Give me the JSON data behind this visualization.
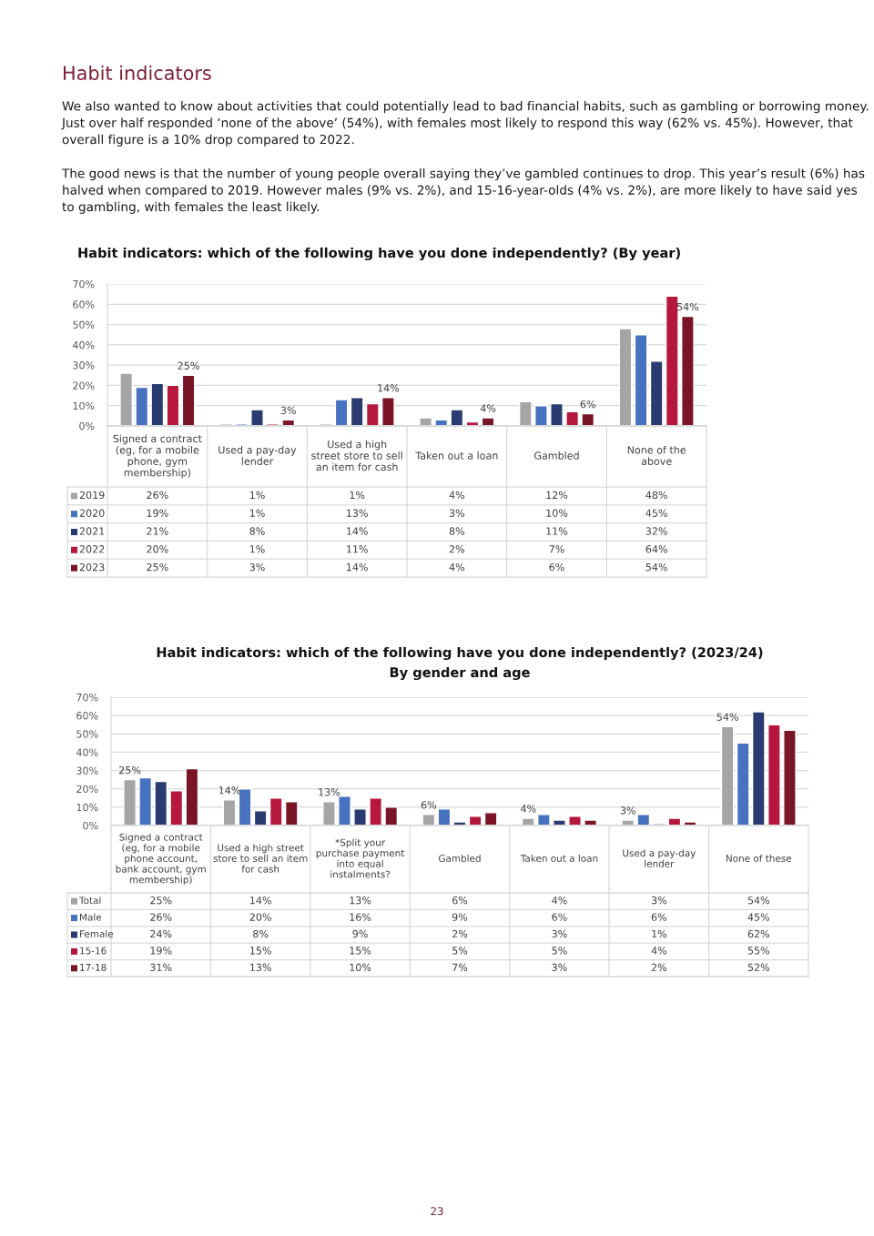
{
  "chart_data": [
    {
      "type": "other",
      "title": "Habit indicators",
      "annotations": [
        "We also wanted to know about activities that could potentially lead to bad financial habits, such as gambling or borrowing money. Just over half responded ‘none of the above’ (54%), with females most likely to respond this way (62% vs. 45%). However, that overall figure is a 10% drop compared to 2022.",
        "The good news is that the number of young people overall saying they’ve gambled continues to drop. This year’s result (6%) has halved when compared to 2019. However males (9% vs. 2%), and 15-16-year-olds (4% vs. 2%), are more likely to have said yes to gambling, with females the least likely."
      ]
    },
    {
      "type": "bar",
      "title": "Habit indicators: which of the following have you done independently? (By year)",
      "categories": [
        "Signed a contract (eg, for a mobile phone, gym membership)",
        "Used a pay-day lender",
        "Used a high street store to sell an item for cash",
        "Taken out a loan",
        "Gambled",
        "None of the above"
      ],
      "series": [
        {
          "name": "2019",
          "color": "#a5a5a5",
          "values": [
            26,
            1,
            1,
            4,
            12,
            48
          ],
          "value_labels": [
            "26%",
            "1%",
            "1%",
            "4%",
            "12%",
            "48%"
          ]
        },
        {
          "name": "2020",
          "color": "#4672bf",
          "values": [
            19,
            1,
            13,
            3,
            10,
            45
          ],
          "value_labels": [
            "19%",
            "1%",
            "13%",
            "3%",
            "10%",
            "45%"
          ]
        },
        {
          "name": "2021",
          "color": "#293b70",
          "values": [
            21,
            8,
            14,
            8,
            11,
            32
          ],
          "value_labels": [
            "21%",
            "8%",
            "14%",
            "8%",
            "11%",
            "32%"
          ]
        },
        {
          "name": "2022",
          "color": "#b5173d",
          "values": [
            20,
            1,
            11,
            2,
            7,
            64
          ],
          "value_labels": [
            "20%",
            "1%",
            "11%",
            "2%",
            "7%",
            "64%"
          ]
        },
        {
          "name": "2023",
          "color": "#7a1527",
          "values": [
            25,
            3,
            14,
            4,
            6,
            54
          ],
          "value_labels": [
            "25%",
            "3%",
            "14%",
            "4%",
            "6%",
            "54%"
          ]
        }
      ],
      "annotations": [
        "25%",
        "3%",
        "14%",
        "4%",
        "6%",
        "54%"
      ],
      "ylim": [
        0,
        70
      ],
      "yticks": [
        {
          "value": 0,
          "label": "0%"
        },
        {
          "value": 10,
          "label": "10%"
        },
        {
          "value": 20,
          "label": "20%"
        },
        {
          "value": 30,
          "label": "30%"
        },
        {
          "value": 40,
          "label": "40%"
        },
        {
          "value": 50,
          "label": "50%"
        },
        {
          "value": 60,
          "label": "60%"
        },
        {
          "value": 70,
          "label": "70%"
        }
      ],
      "grid": "y",
      "legend": "bottom"
    },
    {
      "type": "bar",
      "title": "Habit indicators: which of the following have you done independently? (2023/24)",
      "subtitle": "By gender and age",
      "categories": [
        "Signed a contract (eg, for a mobile phone account, bank account, gym membership)",
        "Used a high street store to sell an item for cash",
        "*Split your purchase payment into equal instalments?",
        "Gambled",
        "Taken out a loan",
        "Used a pay-day lender",
        "None of these"
      ],
      "series": [
        {
          "name": "Total",
          "color": "#a5a5a5",
          "values": [
            25,
            14,
            13,
            6,
            4,
            3,
            54
          ],
          "value_labels": [
            "25%",
            "14%",
            "13%",
            "6%",
            "4%",
            "3%",
            "54%"
          ]
        },
        {
          "name": "Male",
          "color": "#4672bf",
          "values": [
            26,
            20,
            16,
            9,
            6,
            6,
            45
          ],
          "value_labels": [
            "26%",
            "20%",
            "16%",
            "9%",
            "6%",
            "6%",
            "45%"
          ]
        },
        {
          "name": "Female",
          "color": "#293b70",
          "values": [
            24,
            8,
            9,
            2,
            3,
            1,
            62
          ],
          "value_labels": [
            "24%",
            "8%",
            "9%",
            "2%",
            "3%",
            "1%",
            "62%"
          ]
        },
        {
          "name": "15-16",
          "color": "#b5173d",
          "values": [
            19,
            15,
            15,
            5,
            5,
            4,
            55
          ],
          "value_labels": [
            "19%",
            "15%",
            "15%",
            "5%",
            "5%",
            "4%",
            "55%"
          ]
        },
        {
          "name": "17-18",
          "color": "#7a1527",
          "values": [
            31,
            13,
            10,
            7,
            3,
            2,
            52
          ],
          "value_labels": [
            "31%",
            "13%",
            "10%",
            "7%",
            "3%",
            "2%",
            "52%"
          ]
        }
      ],
      "annotations": [
        "25%",
        "14%",
        "13%",
        "6%",
        "4%",
        "3%",
        "54%"
      ],
      "ylim": [
        0,
        70
      ],
      "yticks": [
        {
          "value": 0,
          "label": "0%"
        },
        {
          "value": 10,
          "label": "10%"
        },
        {
          "value": 20,
          "label": "20%"
        },
        {
          "value": 30,
          "label": "30%"
        },
        {
          "value": 40,
          "label": "40%"
        },
        {
          "value": 50,
          "label": "50%"
        },
        {
          "value": 60,
          "label": "60%"
        },
        {
          "value": 70,
          "label": "70%"
        }
      ],
      "grid": "y",
      "legend": "bottom"
    },
    {
      "type": "other",
      "annotations": [
        "23"
      ]
    }
  ]
}
